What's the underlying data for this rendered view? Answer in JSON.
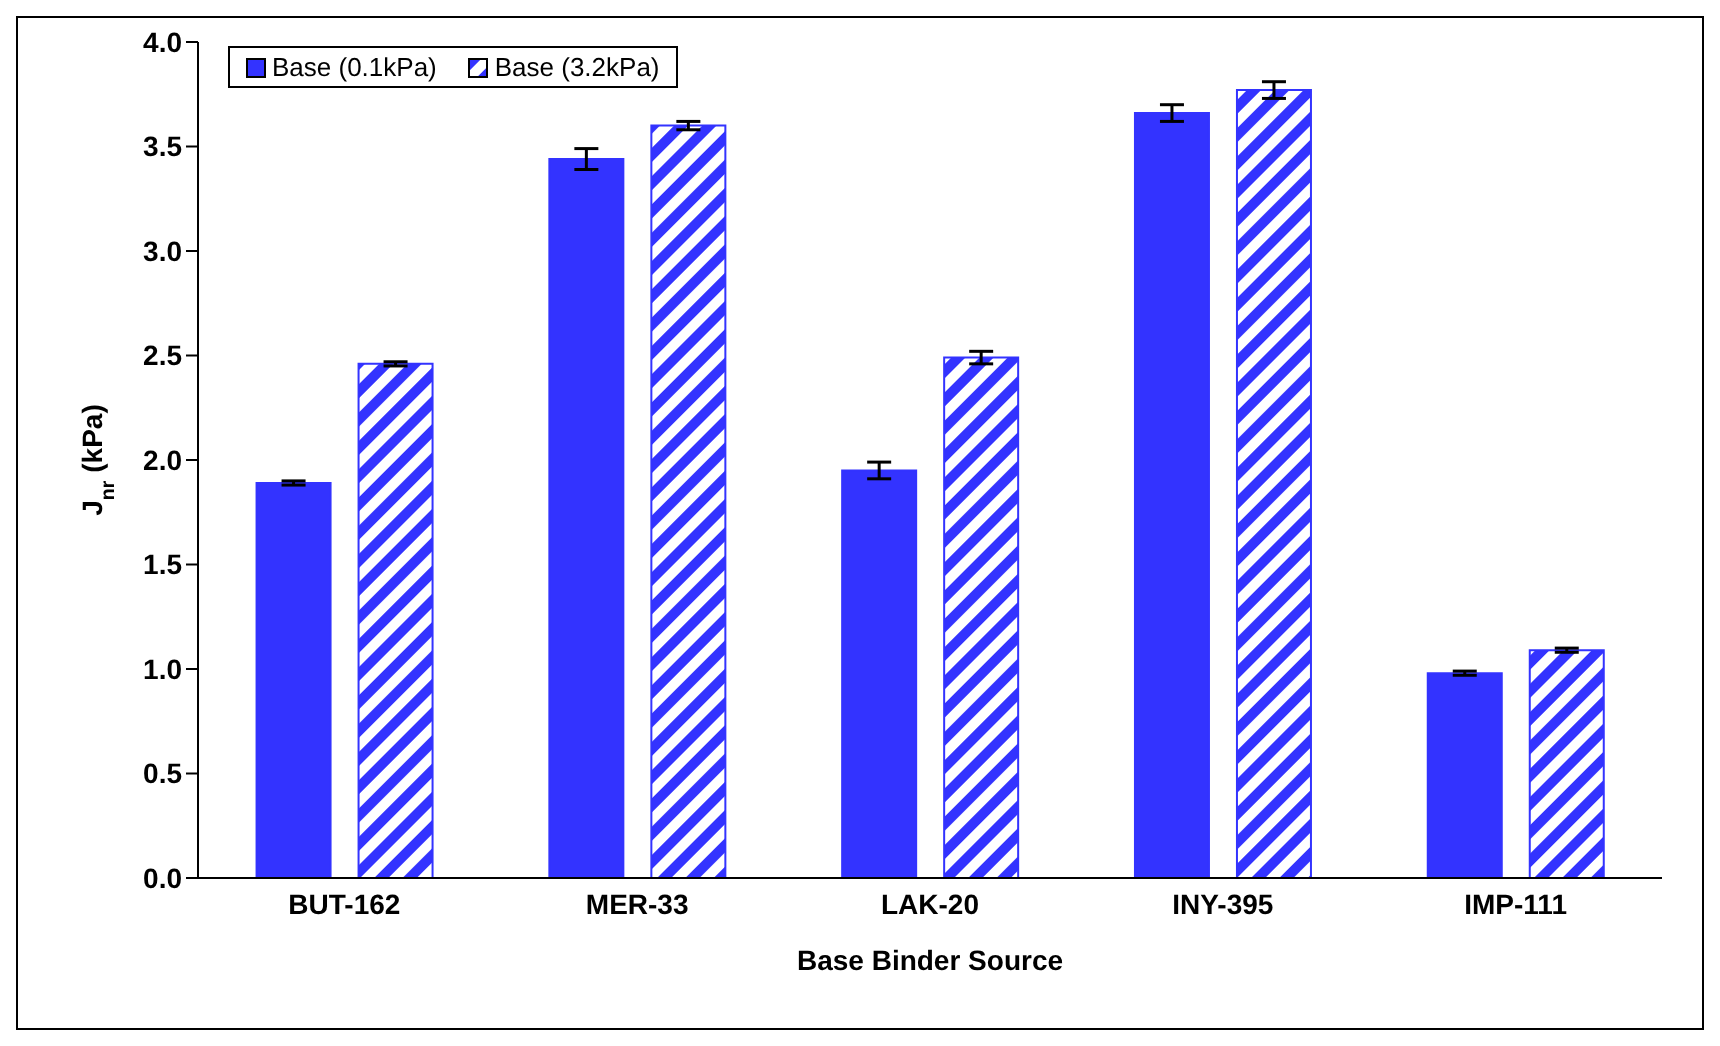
{
  "chart_data": {
    "type": "bar",
    "xlabel": "Base Binder Source",
    "ylabel": "J$_{nr}$ (kPa)",
    "categories": [
      "BUT-162",
      "MER-33",
      "LAK-20",
      "INY-395",
      "IMP-111"
    ],
    "series": [
      {
        "name": "Base (0.1kPa)",
        "color": "#3333ff",
        "values": [
          1.89,
          3.44,
          1.95,
          3.66,
          0.98
        ],
        "errors": [
          0.01,
          0.05,
          0.04,
          0.04,
          0.01
        ]
      },
      {
        "name": "Base (3.2kPa)",
        "color": "#3333ff",
        "values": [
          2.46,
          3.6,
          2.49,
          3.77,
          1.09
        ],
        "errors": [
          0.01,
          0.02,
          0.03,
          0.04,
          0.01
        ]
      }
    ],
    "ylim": [
      0,
      4
    ],
    "yticks": [
      {
        "value": 0,
        "label": "0.0"
      },
      0.5,
      {
        "value": 1,
        "label": "1.0"
      },
      1.5,
      {
        "value": 2,
        "label": "2.0"
      },
      2.5,
      {
        "value": 3,
        "label": "3.0"
      },
      3.5,
      {
        "value": 4,
        "label": "4.0"
      }
    ],
    "grid": false,
    "legend": "top left"
  }
}
